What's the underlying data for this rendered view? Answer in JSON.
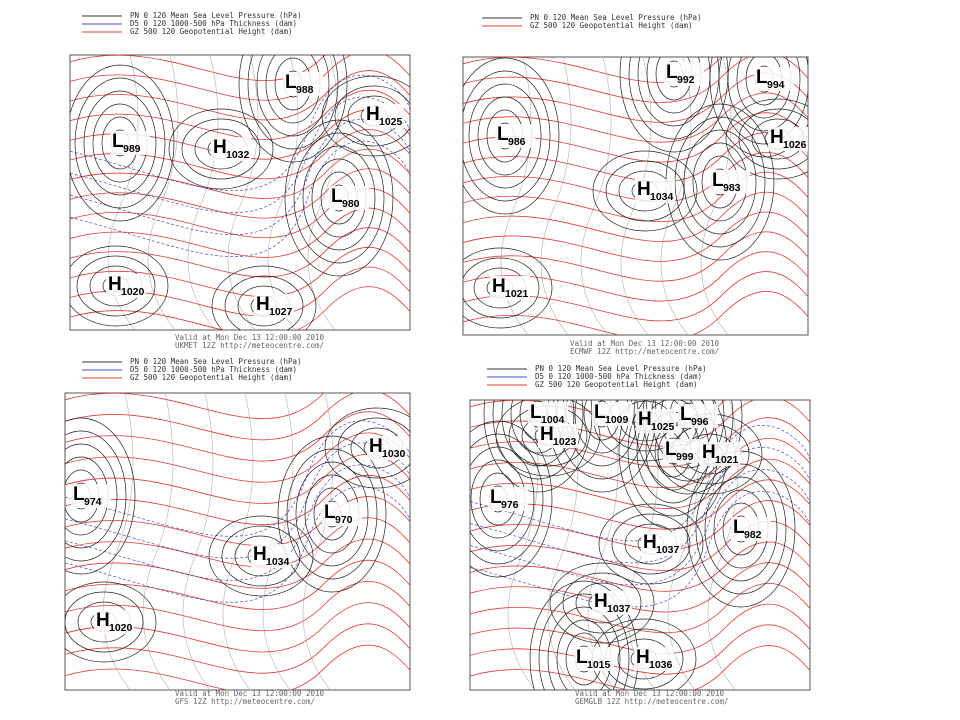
{
  "panels": [
    {
      "legend": [
        "PN 0 120 Mean Sea Level Pressure (hPa)",
        "D5 0 120 1000-500 hPa Thickness (dam)",
        "GZ 500 120 Geopotential Height (dam)"
      ],
      "centers": [
        {
          "type": "L",
          "value": 988
        },
        {
          "type": "H",
          "value": 1025
        },
        {
          "type": "L",
          "value": 989
        },
        {
          "type": "H",
          "value": 1032
        },
        {
          "type": "L",
          "value": 980
        },
        {
          "type": "H",
          "value": 1020
        },
        {
          "type": "H",
          "value": 1027
        }
      ],
      "valid": "Valid at Mon Dec 13 12:00:00 2010",
      "model": "UKMET 12Z http://meteocentre.com/"
    },
    {
      "legend": [
        "PN 0 120 Mean Sea Level Pressure (hPa)",
        "GZ 500 120 Geopotential Height (dam)"
      ],
      "centers": [
        {
          "type": "L",
          "value": 992
        },
        {
          "type": "L",
          "value": 994
        },
        {
          "type": "L",
          "value": 986
        },
        {
          "type": "H",
          "value": 1026
        },
        {
          "type": "L",
          "value": 983
        },
        {
          "type": "H",
          "value": 1034
        },
        {
          "type": "H",
          "value": 1021
        }
      ],
      "valid": "Valid at Mon Dec 13 12:00:00 2010",
      "model": "ECMWF 12Z http://meteocentre.com/"
    },
    {
      "legend": [
        "PN 0 120 Mean Sea Level Pressure (hPa)",
        "D5 0 120 1000-500 hPa Thickness (dam)",
        "GZ 500 120 Geopotential Height (dam)"
      ],
      "centers": [
        {
          "type": "H",
          "value": 1030
        },
        {
          "type": "L",
          "value": 974
        },
        {
          "type": "L",
          "value": 970
        },
        {
          "type": "H",
          "value": 1034
        },
        {
          "type": "H",
          "value": 1020
        }
      ],
      "valid": "Valid at Mon Dec 13 12:00:00 2010",
      "model": "GFS 12Z http://meteocentre.com/"
    },
    {
      "legend": [
        "PN 0 120 Mean Sea Level Pressure (hPa)",
        "D5 0 120 1000-500 hPa Thickness (dam)",
        "GZ 500 120 Geopotential Height (dam)"
      ],
      "centers": [
        {
          "type": "L",
          "value": 1004
        },
        {
          "type": "L",
          "value": 1009
        },
        {
          "type": "H",
          "value": 1025
        },
        {
          "type": "L",
          "value": 996
        },
        {
          "type": "H",
          "value": 1023
        },
        {
          "type": "L",
          "value": 999
        },
        {
          "type": "H",
          "value": 1021
        },
        {
          "type": "L",
          "value": 976
        },
        {
          "type": "H",
          "value": 1037
        },
        {
          "type": "L",
          "value": 982
        },
        {
          "type": "H",
          "value": 1037
        },
        {
          "type": "L",
          "value": 1015
        },
        {
          "type": "H",
          "value": 1036
        }
      ],
      "valid": "Valid at Mon Dec 13 12:00:00 2010",
      "model": "GEMGLB 12Z http://meteocentre.com/"
    }
  ]
}
